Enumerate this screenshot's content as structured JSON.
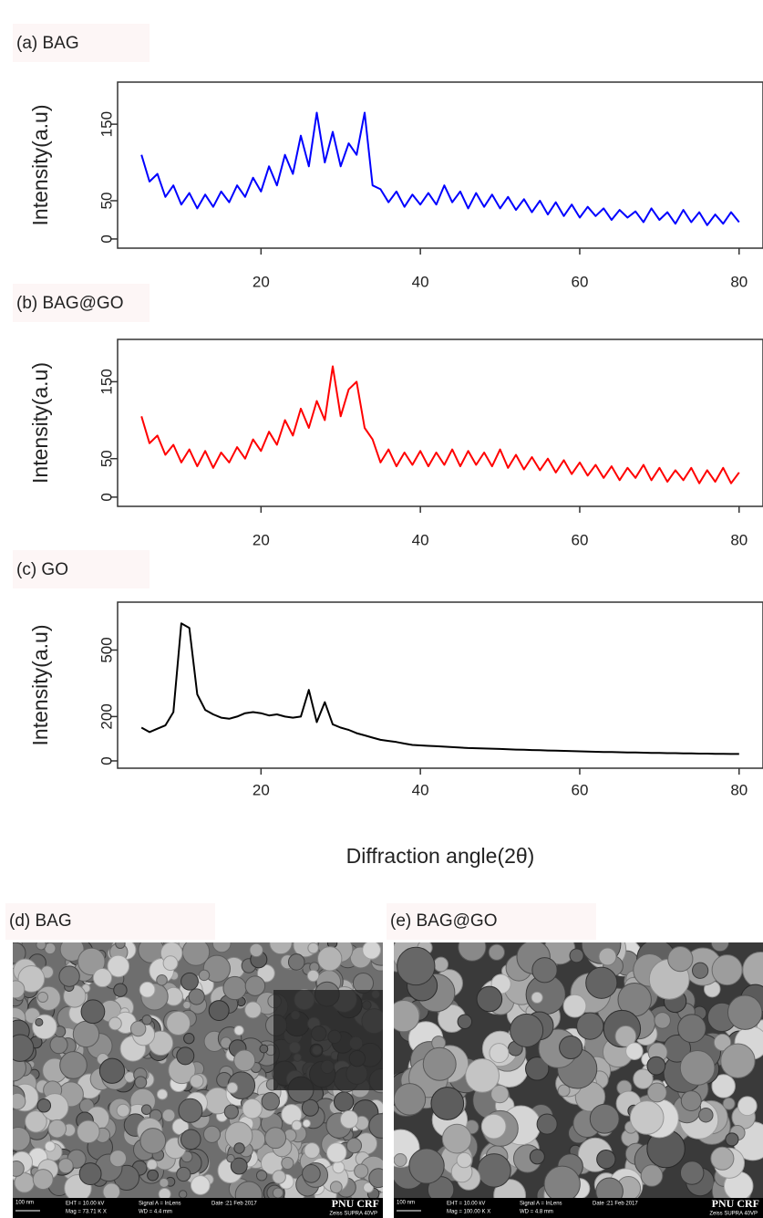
{
  "chart_data": [
    {
      "type": "line",
      "title": "(a) BAG",
      "y_label": "Intensity(a.u)",
      "color": "#0000ff",
      "xlim": [
        2,
        83
      ],
      "ylim": [
        -12,
        205
      ],
      "xticks": [
        20,
        40,
        60,
        80
      ],
      "yticks": [
        0,
        50,
        150
      ],
      "x": [
        5,
        6,
        7,
        8,
        9,
        10,
        11,
        12,
        13,
        14,
        15,
        16,
        17,
        18,
        19,
        20,
        21,
        22,
        23,
        24,
        25,
        26,
        27,
        28,
        29,
        30,
        31,
        32,
        33,
        34,
        35,
        36,
        37,
        38,
        39,
        40,
        41,
        42,
        43,
        44,
        45,
        46,
        47,
        48,
        49,
        50,
        51,
        52,
        53,
        54,
        55,
        56,
        57,
        58,
        59,
        60,
        61,
        62,
        63,
        64,
        65,
        66,
        67,
        68,
        69,
        70,
        71,
        72,
        73,
        74,
        75,
        76,
        77,
        78,
        79,
        80
      ],
      "values": [
        110,
        75,
        85,
        55,
        70,
        45,
        60,
        40,
        58,
        42,
        62,
        48,
        70,
        55,
        80,
        62,
        95,
        70,
        110,
        85,
        135,
        95,
        165,
        100,
        140,
        95,
        125,
        110,
        165,
        70,
        65,
        48,
        62,
        42,
        58,
        45,
        60,
        45,
        70,
        48,
        62,
        40,
        60,
        42,
        58,
        40,
        55,
        38,
        52,
        35,
        50,
        32,
        48,
        30,
        45,
        28,
        42,
        30,
        40,
        25,
        38,
        28,
        36,
        22,
        40,
        25,
        35,
        20,
        38,
        22,
        35,
        18,
        32,
        20,
        35,
        22
      ]
    },
    {
      "type": "line",
      "title": "(b) BAG@GO",
      "y_label": "Intensity(a.u)",
      "color": "#ff0000",
      "xlim": [
        2,
        83
      ],
      "ylim": [
        -12,
        205
      ],
      "xticks": [
        20,
        40,
        60,
        80
      ],
      "yticks": [
        0,
        50,
        150
      ],
      "x": [
        5,
        6,
        7,
        8,
        9,
        10,
        11,
        12,
        13,
        14,
        15,
        16,
        17,
        18,
        19,
        20,
        21,
        22,
        23,
        24,
        25,
        26,
        27,
        28,
        29,
        30,
        31,
        32,
        33,
        34,
        35,
        36,
        37,
        38,
        39,
        40,
        41,
        42,
        43,
        44,
        45,
        46,
        47,
        48,
        49,
        50,
        51,
        52,
        53,
        54,
        55,
        56,
        57,
        58,
        59,
        60,
        61,
        62,
        63,
        64,
        65,
        66,
        67,
        68,
        69,
        70,
        71,
        72,
        73,
        74,
        75,
        76,
        77,
        78,
        79,
        80
      ],
      "values": [
        105,
        70,
        80,
        55,
        68,
        45,
        62,
        40,
        60,
        38,
        58,
        45,
        65,
        50,
        75,
        60,
        85,
        68,
        100,
        80,
        115,
        90,
        125,
        100,
        170,
        105,
        140,
        150,
        90,
        75,
        45,
        62,
        40,
        58,
        42,
        60,
        40,
        58,
        42,
        62,
        40,
        60,
        42,
        58,
        40,
        62,
        38,
        55,
        36,
        52,
        35,
        50,
        32,
        48,
        30,
        45,
        28,
        42,
        25,
        40,
        22,
        38,
        25,
        42,
        22,
        38,
        20,
        35,
        22,
        38,
        18,
        35,
        20,
        38,
        18,
        32
      ]
    },
    {
      "type": "line",
      "title": "(c) GO",
      "y_label": "Intensity(a.u)",
      "x_label": "Diffraction angle(2θ)",
      "color": "#000000",
      "xlim": [
        2,
        83
      ],
      "ylim": [
        -33,
        716
      ],
      "xticks": [
        20,
        40,
        60,
        80
      ],
      "yticks": [
        0,
        200,
        500
      ],
      "x": [
        5,
        6,
        7,
        8,
        9,
        10,
        11,
        12,
        13,
        14,
        15,
        16,
        17,
        18,
        19,
        20,
        21,
        22,
        23,
        24,
        25,
        26,
        27,
        28,
        29,
        30,
        31,
        32,
        33,
        34,
        35,
        36,
        37,
        38,
        39,
        40,
        41,
        42,
        43,
        44,
        45,
        46,
        47,
        48,
        49,
        50,
        51,
        52,
        53,
        54,
        55,
        56,
        57,
        58,
        59,
        60,
        61,
        62,
        63,
        64,
        65,
        66,
        67,
        68,
        69,
        70,
        71,
        72,
        73,
        74,
        75,
        76,
        77,
        78,
        79,
        80
      ],
      "values": [
        150,
        130,
        145,
        160,
        220,
        620,
        600,
        300,
        230,
        210,
        195,
        190,
        200,
        215,
        220,
        215,
        205,
        210,
        200,
        195,
        200,
        320,
        175,
        265,
        165,
        150,
        140,
        125,
        115,
        105,
        95,
        90,
        85,
        78,
        72,
        70,
        68,
        66,
        64,
        62,
        60,
        58,
        57,
        56,
        55,
        54,
        52,
        51,
        50,
        49,
        48,
        47,
        46,
        45,
        44,
        43,
        42,
        41,
        40,
        40,
        39,
        38,
        38,
        37,
        36,
        36,
        35,
        35,
        34,
        34,
        33,
        33,
        32,
        32,
        31,
        31
      ]
    }
  ],
  "images": [
    {
      "label": "(d) BAG",
      "scale": "100 nm",
      "eht": "EHT = 10.00 kV",
      "mag": "Mag =  73.71 K X",
      "signal": "Signal A = InLens",
      "wd": "WD = 4.4 mm",
      "date": "Date :21 Feb 2017",
      "brand": "PNU CRF",
      "instrument": "Zeiss SUPRA 40VP"
    },
    {
      "label": "(e) BAG@GO",
      "scale": "100 nm",
      "eht": "EHT = 10.00 kV",
      "mag": "Mag = 100.00 K X",
      "signal": "Signal A = InLens",
      "wd": "WD = 4.8 mm",
      "date": "Date :21 Feb 2017",
      "brand": "PNU CRF",
      "instrument": "Zeiss SUPRA 40VP"
    }
  ]
}
